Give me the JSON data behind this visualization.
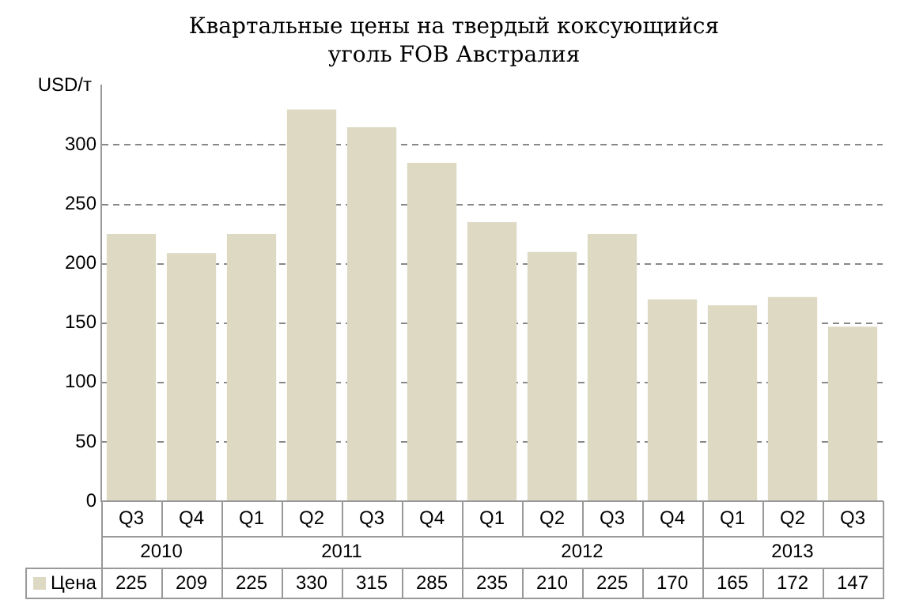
{
  "chart_data": {
    "type": "bar",
    "title": "Квартальные цены на твердый коксующийся уголь FOB Австралия",
    "ylabel": "USD/т",
    "categories": [
      "Q3",
      "Q4",
      "Q1",
      "Q2",
      "Q3",
      "Q4",
      "Q1",
      "Q2",
      "Q3",
      "Q4",
      "Q1",
      "Q2",
      "Q3"
    ],
    "annotations": [
      "2010",
      "2011",
      "2012",
      "2013"
    ],
    "series": [
      {
        "name": "Цена",
        "color": "#ddd9c3",
        "values": [
          225,
          209,
          225,
          330,
          315,
          285,
          235,
          210,
          225,
          170,
          165,
          172,
          147
        ]
      }
    ],
    "ylim": [
      0,
      350
    ],
    "yticks": [
      0,
      50,
      100,
      150,
      200,
      250,
      300
    ],
    "grid": "y",
    "data_labels": true,
    "legend": "bottom left"
  }
}
